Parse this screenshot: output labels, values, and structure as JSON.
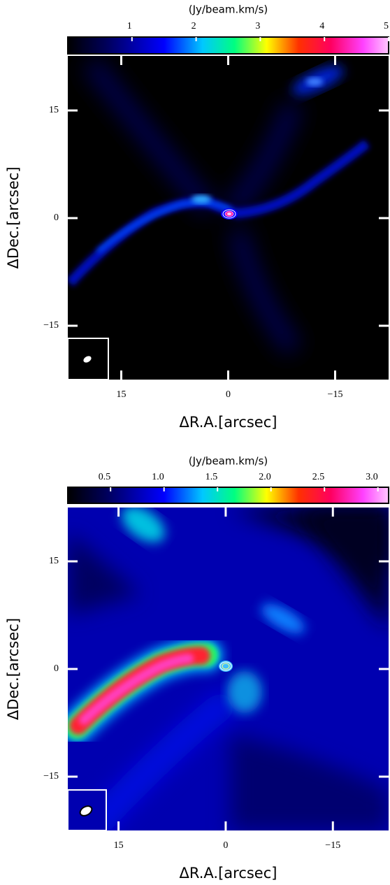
{
  "chart_data": [
    {
      "type": "image",
      "colorbar_label": "(Jy/beam.km/s)",
      "clim": [
        0,
        5
      ],
      "cticks": [
        1,
        2,
        3,
        4,
        5
      ],
      "xlabel": "ΔR.A.[arcsec]",
      "ylabel": "ΔDec.[arcsec]",
      "xlim": [
        22.5,
        -22.5
      ],
      "ylim": [
        -22.5,
        22.6
      ],
      "xticks": [
        15,
        0,
        {
          "value": -15,
          "label": "−15"
        }
      ],
      "yticks": [
        15,
        0,
        {
          "value": -15,
          "label": "−15"
        }
      ]
    },
    {
      "type": "image",
      "colorbar_label": "(Jy/beam.km/s)",
      "clim": [
        0.1,
        3.1
      ],
      "cticks": [
        0.5,
        {
          "value": 1,
          "label": "1.0"
        },
        1.5,
        {
          "value": 2,
          "label": "2.0"
        },
        2.5,
        {
          "value": 3,
          "label": "3.0"
        }
      ],
      "xlabel": "ΔR.A.[arcsec]",
      "ylabel": "ΔDec.[arcsec]",
      "xlim": [
        22.1,
        -22.8
      ],
      "ylim": [
        -22.5,
        22.5
      ],
      "xticks": [
        15,
        0,
        {
          "value": -15,
          "label": "−15"
        }
      ],
      "yticks": [
        15,
        0,
        {
          "value": -15,
          "label": "−15"
        }
      ]
    }
  ]
}
